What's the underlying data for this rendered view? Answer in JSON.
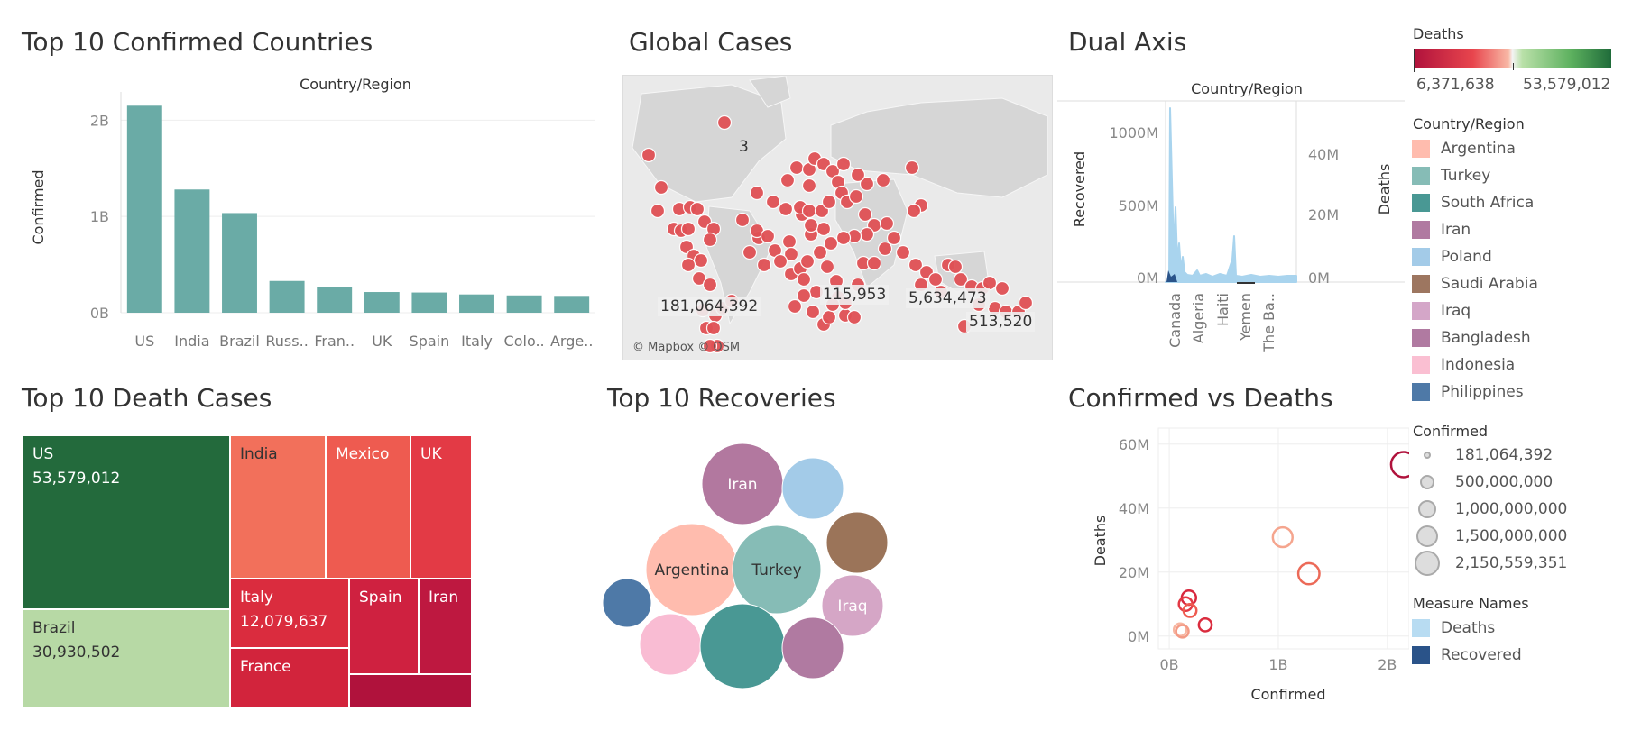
{
  "dashboard": {
    "titles": {
      "top10_confirmed": "Top 10 Confirmed Countries",
      "global_cases": "Global Cases",
      "dual_axis": "Dual Axis",
      "top10_deaths": "Top 10 Death Cases",
      "top10_recoveries": "Top 10 Recoveries",
      "confirmed_vs_deaths": "Confirmed vs Deaths"
    }
  },
  "chart_data": [
    {
      "type": "bar",
      "title": "Top 10 Confirmed Countries",
      "header": "Country/Region",
      "ylabel": "Confirmed",
      "categories": [
        "US",
        "India",
        "Brazil",
        "Russ..",
        "Fran..",
        "UK",
        "Spain",
        "Italy",
        "Colo..",
        "Arge.."
      ],
      "values": [
        2150559351,
        1280000000,
        1035000000,
        330000000,
        265000000,
        215000000,
        210000000,
        190000000,
        180000000,
        175000000
      ],
      "yticks": [
        "0B",
        "1B",
        "2B"
      ],
      "ylim": [
        0,
        2200000000
      ],
      "color": "#6aaba6"
    },
    {
      "type": "scatter",
      "title": "Global Cases",
      "chart_kind": "map",
      "attribution": "© Mapbox © OSM",
      "labels": [
        "3",
        "181,064,392",
        "115,953",
        "5,634,473",
        "513,520"
      ],
      "point_color": "#e05155"
    },
    {
      "type": "area",
      "title": "Dual Axis",
      "header": "Country/Region",
      "left_label": "Recovered",
      "right_label": "Deaths",
      "left_ticks": [
        "0M",
        "500M",
        "1000M"
      ],
      "right_ticks": [
        "0M",
        "20M",
        "40M"
      ],
      "categories": [
        "Canada",
        "Algeria",
        "Haiti",
        "Yemen",
        "The Ba.."
      ],
      "series": [
        {
          "name": "Deaths",
          "color": "#a9d4ee"
        },
        {
          "name": "Recovered",
          "color": "#2a5389"
        }
      ]
    },
    {
      "type": "heatmap",
      "title": "Top 10 Death Cases",
      "chart_kind": "treemap",
      "cells": [
        {
          "name": "US",
          "value": "53,579,012",
          "color": "#236a3c",
          "text": "#ffffff"
        },
        {
          "name": "Brazil",
          "value": "30,930,502",
          "color": "#b7d9a5",
          "text": "#333333"
        },
        {
          "name": "India",
          "value": "",
          "color": "#f2705b",
          "text": "#333333"
        },
        {
          "name": "Mexico",
          "value": "",
          "color": "#ee5b50",
          "text": "#ffffff"
        },
        {
          "name": "UK",
          "value": "",
          "color": "#e33a45",
          "text": "#ffffff"
        },
        {
          "name": "Italy",
          "value": "12,079,637",
          "color": "#da2c3e",
          "text": "#ffffff"
        },
        {
          "name": "Spain",
          "value": "",
          "color": "#cf2140",
          "text": "#ffffff"
        },
        {
          "name": "Iran",
          "value": "",
          "color": "#be1840",
          "text": "#ffffff"
        },
        {
          "name": "France",
          "value": "",
          "color": "#d2243c",
          "text": "#ffffff"
        },
        {
          "name": "",
          "value": "",
          "color": "#b0123c",
          "text": "#ffffff"
        }
      ]
    },
    {
      "type": "scatter",
      "title": "Top 10 Recoveries",
      "chart_kind": "packed-bubbles",
      "bubbles": [
        {
          "name": "Iran",
          "label": "Iran",
          "color": "#b2789f"
        },
        {
          "name": "Poland",
          "label": "",
          "color": "#a3cbe8"
        },
        {
          "name": "Saudi Arabia",
          "label": "",
          "color": "#9b7459"
        },
        {
          "name": "Argentina",
          "label": "Argentina",
          "color": "#ffbcae"
        },
        {
          "name": "Turkey",
          "label": "Turkey",
          "color": "#86bcb6"
        },
        {
          "name": "Iraq",
          "label": "Iraq",
          "color": "#d5a6c6"
        },
        {
          "name": "Philippines",
          "label": "",
          "color": "#4e79a7"
        },
        {
          "name": "Indonesia",
          "label": "",
          "color": "#f9bcd3"
        },
        {
          "name": "South Africa",
          "label": "",
          "color": "#499894"
        },
        {
          "name": "Bangladesh",
          "label": "",
          "color": "#b07aa1"
        }
      ]
    },
    {
      "type": "scatter",
      "title": "Confirmed vs Deaths",
      "xlabel": "Confirmed",
      "ylabel": "Deaths",
      "xticks": [
        "0B",
        "1B",
        "2B"
      ],
      "yticks": [
        "0M",
        "20M",
        "40M",
        "60M"
      ],
      "xlim": [
        -0.1,
        2.2
      ],
      "ylim": [
        -4,
        65
      ],
      "points": [
        {
          "x": 2.15,
          "y": 53.6,
          "size": 2150559351,
          "color": "#b0123c"
        },
        {
          "x": 1.04,
          "y": 30.9,
          "size": 1035000000,
          "color": "#f5a58e"
        },
        {
          "x": 1.28,
          "y": 19.5,
          "size": 1280000000,
          "color": "#ec6a58"
        },
        {
          "x": 0.18,
          "y": 12.0,
          "size": 330000000,
          "color": "#d8283e"
        },
        {
          "x": 0.15,
          "y": 10.0,
          "size": 265000000,
          "color": "#e33a45"
        },
        {
          "x": 0.19,
          "y": 8.0,
          "size": 215000000,
          "color": "#ee5b50"
        },
        {
          "x": 0.33,
          "y": 3.5,
          "size": 210000000,
          "color": "#da2c3e"
        },
        {
          "x": 0.1,
          "y": 2.0,
          "size": 190000000,
          "color": "#f7b5a0"
        },
        {
          "x": 0.12,
          "y": 1.5,
          "size": 180000000,
          "color": "#f39a85"
        }
      ]
    }
  ],
  "legends": {
    "deaths": {
      "title": "Deaths",
      "min_label": "6,371,638",
      "max_label": "53,579,012"
    },
    "country": {
      "title": "Country/Region",
      "items": [
        {
          "label": "Argentina",
          "color": "#ffbcae"
        },
        {
          "label": "Turkey",
          "color": "#86bcb6"
        },
        {
          "label": "South Africa",
          "color": "#499894"
        },
        {
          "label": "Iran",
          "color": "#b07aa1"
        },
        {
          "label": "Poland",
          "color": "#a3cbe8"
        },
        {
          "label": "Saudi Arabia",
          "color": "#9d7660"
        },
        {
          "label": "Iraq",
          "color": "#d4a6c8"
        },
        {
          "label": "Bangladesh",
          "color": "#b07aa1"
        },
        {
          "label": "Indonesia",
          "color": "#fabfd2"
        },
        {
          "label": "Philippines",
          "color": "#4e79a7"
        }
      ]
    },
    "confirmed": {
      "title": "Confirmed",
      "items": [
        "181,064,392",
        "500,000,000",
        "1,000,000,000",
        "1,500,000,000",
        "2,150,559,351"
      ]
    },
    "measure": {
      "title": "Measure Names",
      "items": [
        {
          "label": "Deaths",
          "color": "#b8dcf2"
        },
        {
          "label": "Recovered",
          "color": "#2a5389"
        }
      ]
    }
  }
}
